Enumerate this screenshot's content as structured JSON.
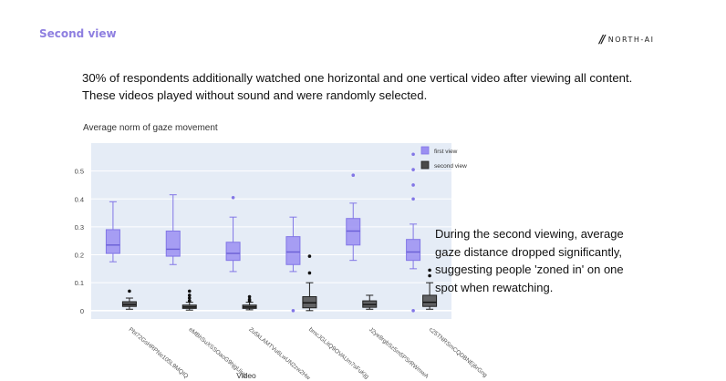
{
  "header": {
    "section_title": "Second view",
    "brand_name": "NORTH-AI"
  },
  "intro": {
    "line1": "30% of respondents additionally watched one horizontal and one vertical video after viewing all content.",
    "line2": "These videos played without sound and were randomly selected."
  },
  "side_note": "During the second viewing, average gaze distance dropped significantly, suggesting people 'zoned in' on one spot when rewatching.",
  "chart_data": {
    "type": "box",
    "title": "Average norm of gaze movement",
    "xlabel": "Video",
    "ylabel": "",
    "ylim": [
      -0.03,
      0.6
    ],
    "yticks": [
      0,
      0.1,
      0.2,
      0.3,
      0.4,
      0.5
    ],
    "grid": true,
    "legend_position": "top-right",
    "categories": [
      "Pbt72GsHRPNe105L9MQIQ",
      "eMBhSuXSSOaoG9hjgUjug",
      "Zu5kLAMTVu6LwUN2zw2Hw",
      "bmcJGLitQ9OVAUm7sFuKjg",
      "J2ye8rgbSz5m5PSrRWmwA",
      "c25TNRSmCQDBNEj6rGng"
    ],
    "series": [
      {
        "name": "first view",
        "color": "#9b8ff2",
        "boxes": [
          {
            "min": 0.175,
            "q1": 0.205,
            "median": 0.235,
            "q3": 0.29,
            "max": 0.39,
            "outliers": []
          },
          {
            "min": 0.165,
            "q1": 0.195,
            "median": 0.22,
            "q3": 0.285,
            "max": 0.415,
            "outliers": []
          },
          {
            "min": 0.14,
            "q1": 0.18,
            "median": 0.205,
            "q3": 0.245,
            "max": 0.335,
            "outliers": [
              0.405
            ]
          },
          {
            "min": 0.14,
            "q1": 0.165,
            "median": 0.21,
            "q3": 0.265,
            "max": 0.335,
            "outliers": [
              0.0
            ]
          },
          {
            "min": 0.18,
            "q1": 0.235,
            "median": 0.285,
            "q3": 0.33,
            "max": 0.385,
            "outliers": [
              0.485
            ]
          },
          {
            "min": 0.15,
            "q1": 0.18,
            "median": 0.21,
            "q3": 0.255,
            "max": 0.31,
            "outliers": [
              0.56,
              0.505,
              0.45,
              0.4,
              0.0
            ]
          }
        ]
      },
      {
        "name": "second view",
        "color": "#4a4a4a",
        "boxes": [
          {
            "min": 0.005,
            "q1": 0.015,
            "median": 0.022,
            "q3": 0.032,
            "max": 0.045,
            "outliers": [
              0.07
            ]
          },
          {
            "min": 0.002,
            "q1": 0.008,
            "median": 0.013,
            "q3": 0.02,
            "max": 0.03,
            "outliers": [
              0.07,
              0.055,
              0.045,
              0.035
            ]
          },
          {
            "min": 0.003,
            "q1": 0.008,
            "median": 0.013,
            "q3": 0.02,
            "max": 0.03,
            "outliers": [
              0.05,
              0.04,
              0.035
            ]
          },
          {
            "min": 0.0,
            "q1": 0.01,
            "median": 0.028,
            "q3": 0.05,
            "max": 0.1,
            "outliers": [
              0.195,
              0.135
            ]
          },
          {
            "min": 0.005,
            "q1": 0.012,
            "median": 0.022,
            "q3": 0.035,
            "max": 0.055,
            "outliers": []
          },
          {
            "min": 0.005,
            "q1": 0.015,
            "median": 0.03,
            "q3": 0.055,
            "max": 0.1,
            "outliers": [
              0.145,
              0.125
            ]
          }
        ]
      }
    ]
  }
}
